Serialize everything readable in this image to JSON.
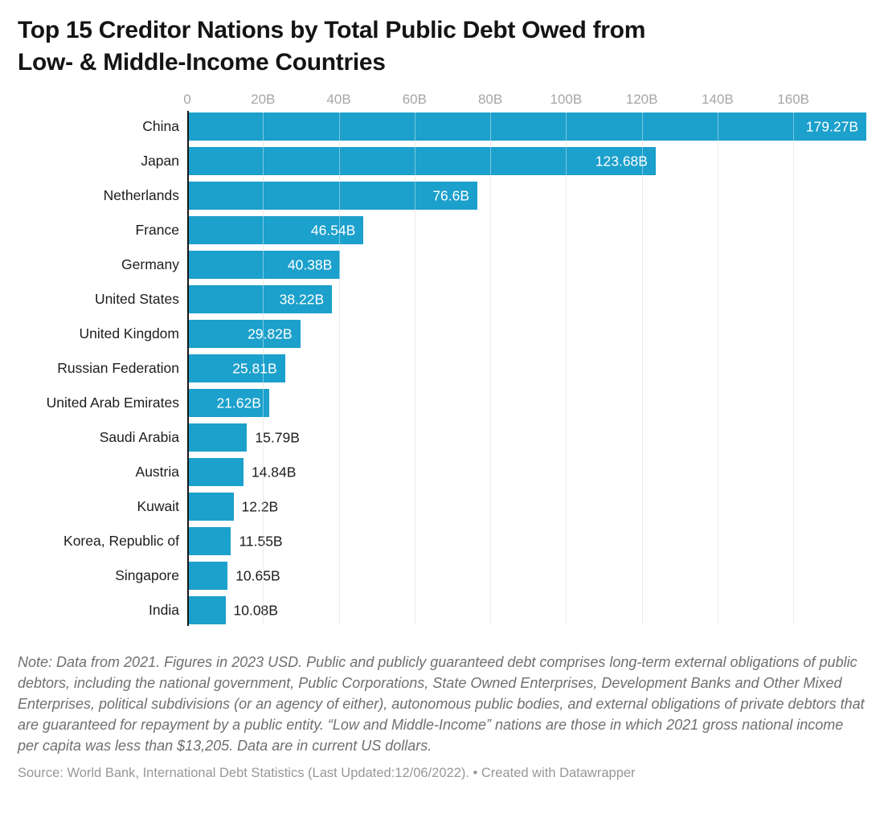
{
  "header": {
    "title_line1": "Top 15 Creditor Nations by Total Public Debt Owed from",
    "title_line2": "Low- & Middle-Income Countries"
  },
  "chart_data": {
    "type": "bar",
    "orientation": "horizontal",
    "title": "Top 15 Creditor Nations by Total Public Debt Owed from Low- & Middle-Income Countries",
    "value_suffix": "B",
    "categories": [
      "China",
      "Japan",
      "Netherlands",
      "France",
      "Germany",
      "United States",
      "United Kingdom",
      "Russian Federation",
      "United Arab Emirates",
      "Saudi Arabia",
      "Austria",
      "Kuwait",
      "Korea, Republic of",
      "Singapore",
      "India"
    ],
    "values": [
      179.27,
      123.68,
      76.6,
      46.54,
      40.38,
      38.22,
      29.82,
      25.81,
      21.62,
      15.79,
      14.84,
      12.2,
      11.55,
      10.65,
      10.08
    ],
    "value_labels": [
      "179.27B",
      "123.68B",
      "76.6B",
      "46.54B",
      "40.38B",
      "38.22B",
      "29.82B",
      "25.81B",
      "21.62B",
      "15.79B",
      "14.84B",
      "12.2B",
      "11.55B",
      "10.65B",
      "10.08B"
    ],
    "x_ticks": [
      {
        "value": 0,
        "label": "0"
      },
      {
        "value": 20,
        "label": "20B"
      },
      {
        "value": 40,
        "label": "40B"
      },
      {
        "value": 60,
        "label": "60B"
      },
      {
        "value": 80,
        "label": "80B"
      },
      {
        "value": 100,
        "label": "100B"
      },
      {
        "value": 120,
        "label": "120B"
      },
      {
        "value": 140,
        "label": "140B"
      },
      {
        "value": 160,
        "label": "160B"
      }
    ],
    "xlim": [
      0,
      179.27
    ],
    "grid": true,
    "legend_position": "none",
    "colors": {
      "bar": "#1ca0cc",
      "value_inside": "#ffffff",
      "value_outside": "#1d1d1d",
      "tick_label": "#a6a6a6",
      "gridline": "#dcdcdc",
      "axis_line": "#161616"
    }
  },
  "footer": {
    "note": "Note: Data from 2021. Figures in 2023 USD. Public and publicly guaranteed debt comprises long-term external obligations of public debtors, including the national government, Public Corporations, State Owned Enterprises, Development Banks and Other Mixed Enterprises, political subdivisions (or an agency of either), autonomous public bodies, and external obligations of private debtors that are guaranteed for repayment by a public entity. “Low and Middle-Income” nations are those in which 2021 gross national income per capita was less than $13,205. Data are in current US dollars.",
    "source": "Source: World Bank, International Debt Statistics (Last Updated:12/06/2022). • Created with Datawrapper"
  }
}
